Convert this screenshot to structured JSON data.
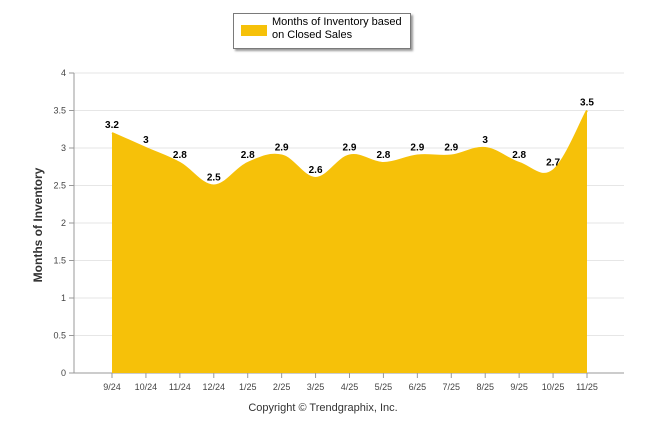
{
  "chart_data": {
    "type": "area",
    "title": "",
    "xlabel": "",
    "ylabel": "Months of Inventory",
    "ylim": [
      0,
      4
    ],
    "yticks": [
      "0",
      "0.5",
      "1",
      "1.5",
      "2",
      "2.5",
      "3",
      "3.5",
      "4"
    ],
    "grid": true,
    "legend_position": "top-center",
    "categories": [
      "9/24",
      "10/24",
      "11/24",
      "12/24",
      "1/25",
      "2/25",
      "3/25",
      "4/25",
      "5/25",
      "6/25",
      "7/25",
      "8/25",
      "9/25",
      "10/25",
      "11/25"
    ],
    "series": [
      {
        "name": "Months of Inventory based on Closed Sales",
        "color": "#f6c109",
        "values": [
          3.2,
          3,
          2.8,
          2.5,
          2.8,
          2.9,
          2.6,
          2.9,
          2.8,
          2.9,
          2.9,
          3,
          2.8,
          2.7,
          3.5
        ],
        "labels": [
          "3.2",
          "3",
          "2.8",
          "2.5",
          "2.8",
          "2.9",
          "2.6",
          "2.9",
          "2.8",
          "2.9",
          "2.9",
          "3",
          "2.8",
          "2.7",
          "3.5"
        ]
      }
    ]
  },
  "legend": {
    "label": "Months of Inventory based on Closed Sales"
  },
  "footer": {
    "copyright": "Copyright © Trendgraphix, Inc."
  }
}
